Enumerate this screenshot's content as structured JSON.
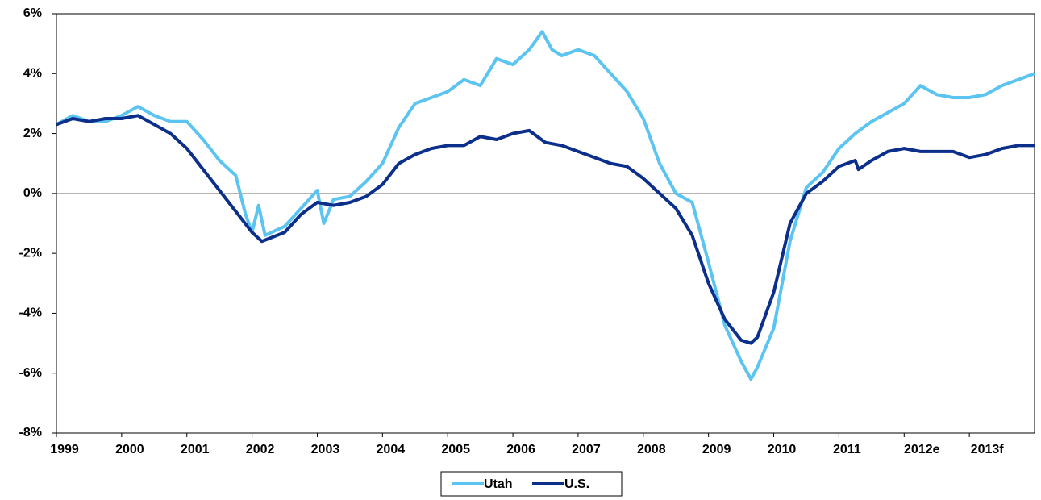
{
  "chart_data": {
    "type": "line",
    "xlim": [
      1999,
      2014
    ],
    "xticks": [
      1999,
      2000,
      2001,
      2002,
      2003,
      2004,
      2005,
      2006,
      2007,
      2008,
      2009,
      2010,
      2011,
      {
        "value": 2012,
        "label": "2012e"
      },
      {
        "value": 2013,
        "label": "2013f"
      }
    ],
    "ylim": [
      -8,
      6
    ],
    "yticks": [
      {
        "value": -8,
        "label": "-8%"
      },
      {
        "value": -6,
        "label": "-6%"
      },
      {
        "value": -4,
        "label": "-4%"
      },
      {
        "value": -2,
        "label": "-2%"
      },
      {
        "value": 0,
        "label": "0%"
      },
      {
        "value": 2,
        "label": "2%"
      },
      {
        "value": 4,
        "label": "4%"
      },
      {
        "value": 6,
        "label": "6%"
      }
    ],
    "legend": "bottom",
    "series": [
      {
        "name": "Utah",
        "color": "#5bc4f1",
        "x": [
          1999,
          1999.25,
          1999.5,
          1999.75,
          2000,
          2000.25,
          2000.5,
          2000.75,
          2001,
          2001.25,
          2001.5,
          2001.75,
          2001.9,
          2002,
          2002.1,
          2002.2,
          2002.5,
          2002.75,
          2003,
          2003.1,
          2003.25,
          2003.5,
          2003.75,
          2004,
          2004.25,
          2004.5,
          2004.75,
          2005,
          2005.25,
          2005.5,
          2005.75,
          2006,
          2006.25,
          2006.45,
          2006.6,
          2006.75,
          2007,
          2007.25,
          2007.5,
          2007.75,
          2008,
          2008.25,
          2008.5,
          2008.75,
          2009,
          2009.25,
          2009.5,
          2009.65,
          2009.75,
          2010,
          2010.25,
          2010.5,
          2010.75,
          2011,
          2011.25,
          2011.5,
          2011.75,
          2012,
          2012.25,
          2012.5,
          2012.75,
          2013,
          2013.25,
          2013.5,
          2013.75,
          2014
        ],
        "values": [
          2.3,
          2.6,
          2.4,
          2.4,
          2.6,
          2.9,
          2.6,
          2.4,
          2.4,
          1.8,
          1.1,
          0.6,
          -0.7,
          -1.3,
          -0.4,
          -1.4,
          -1.1,
          -0.5,
          0.1,
          -1.0,
          -0.2,
          -0.1,
          0.4,
          1.0,
          2.2,
          3.0,
          3.2,
          3.4,
          3.8,
          3.6,
          4.5,
          4.3,
          4.8,
          5.4,
          4.8,
          4.6,
          4.8,
          4.6,
          4.0,
          3.4,
          2.5,
          1.0,
          0.0,
          -0.3,
          -2.3,
          -4.4,
          -5.6,
          -6.2,
          -5.8,
          -4.5,
          -1.6,
          0.2,
          0.7,
          1.5,
          2.0,
          2.4,
          2.7,
          3.0,
          3.6,
          3.3,
          3.2,
          3.2,
          3.3,
          3.6,
          3.8,
          4.0
        ]
      },
      {
        "name": "U.S.",
        "color": "#0b2f8a",
        "x": [
          1999,
          1999.25,
          1999.5,
          1999.75,
          2000,
          2000.25,
          2000.5,
          2000.75,
          2001,
          2001.25,
          2001.5,
          2001.75,
          2002,
          2002.15,
          2002.5,
          2002.75,
          2003,
          2003.25,
          2003.5,
          2003.75,
          2004,
          2004.25,
          2004.5,
          2004.75,
          2005,
          2005.25,
          2005.5,
          2005.75,
          2006,
          2006.25,
          2006.5,
          2006.75,
          2007,
          2007.25,
          2007.5,
          2007.75,
          2008,
          2008.25,
          2008.5,
          2008.75,
          2009,
          2009.25,
          2009.5,
          2009.65,
          2009.75,
          2010,
          2010.25,
          2010.5,
          2010.75,
          2011,
          2011.25,
          2011.3,
          2011.5,
          2011.75,
          2012,
          2012.25,
          2012.5,
          2012.75,
          2013,
          2013.25,
          2013.5,
          2013.75,
          2014
        ],
        "values": [
          2.3,
          2.5,
          2.4,
          2.5,
          2.5,
          2.6,
          2.3,
          2.0,
          1.5,
          0.8,
          0.1,
          -0.6,
          -1.3,
          -1.6,
          -1.3,
          -0.7,
          -0.3,
          -0.4,
          -0.3,
          -0.1,
          0.3,
          1.0,
          1.3,
          1.5,
          1.6,
          1.6,
          1.9,
          1.8,
          2.0,
          2.1,
          1.7,
          1.6,
          1.4,
          1.2,
          1.0,
          0.9,
          0.5,
          0.0,
          -0.5,
          -1.4,
          -3.0,
          -4.2,
          -4.9,
          -5.0,
          -4.8,
          -3.3,
          -1.0,
          0.0,
          0.4,
          0.9,
          1.1,
          0.8,
          1.1,
          1.4,
          1.5,
          1.4,
          1.4,
          1.4,
          1.2,
          1.3,
          1.5,
          1.6,
          1.6
        ]
      }
    ]
  }
}
